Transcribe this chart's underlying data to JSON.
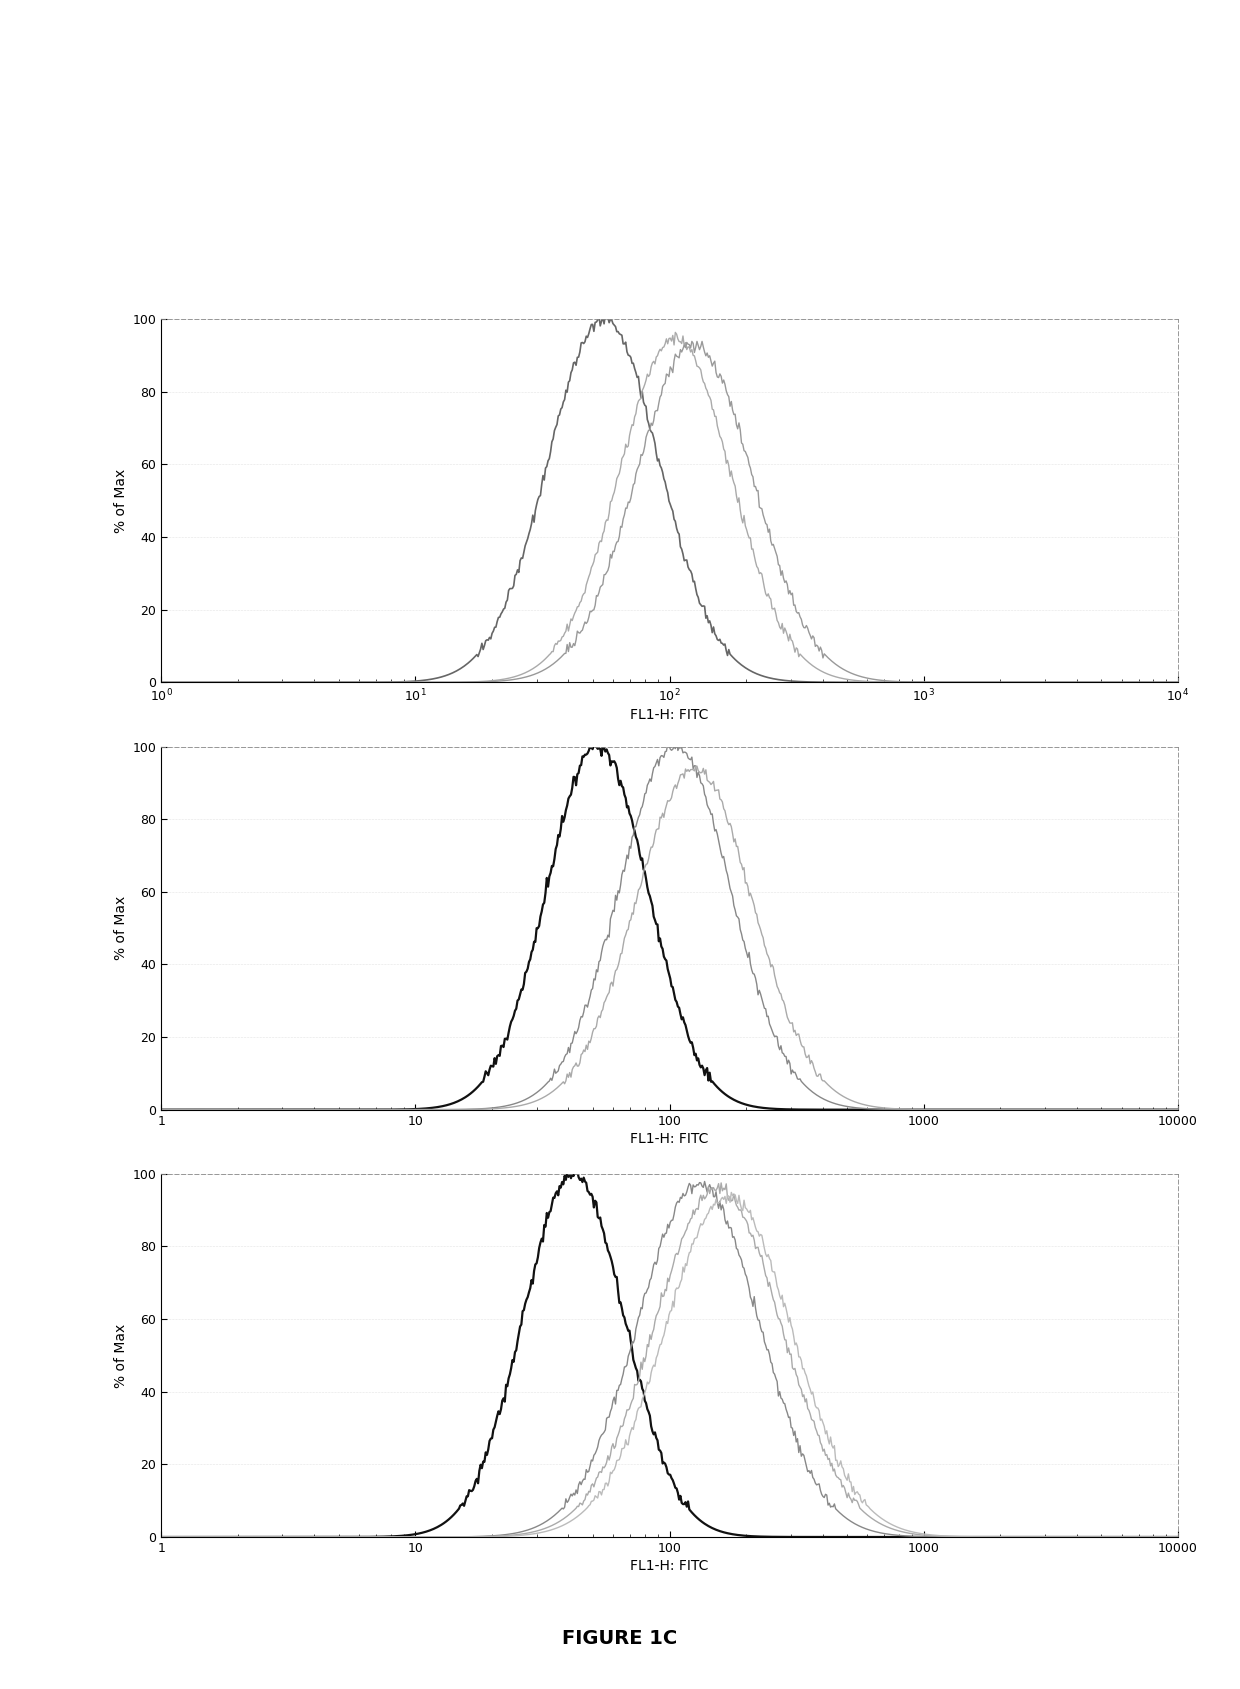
{
  "figure_title": "FIGURE 1C",
  "ylabel": "% of Max",
  "xlabel": "FL1-H: FITC",
  "ylim": [
    0,
    100
  ],
  "yticks": [
    0,
    20,
    40,
    60,
    80,
    100
  ],
  "background_color": "#ffffff",
  "plots": [
    {
      "xlim": [
        1,
        10000
      ],
      "style": "superscript",
      "curves": [
        {
          "color": "#666666",
          "lw": 1.2,
          "peak_x": 55,
          "sigma": 0.22,
          "peak_y": 100,
          "seed": 42
        },
        {
          "color": "#aaaaaa",
          "lw": 1.0,
          "peak_x": 105,
          "sigma": 0.22,
          "peak_y": 95,
          "seed": 55
        },
        {
          "color": "#999999",
          "lw": 1.0,
          "peak_x": 125,
          "sigma": 0.23,
          "peak_y": 93,
          "seed": 67
        }
      ]
    },
    {
      "xlim": [
        1,
        10000
      ],
      "style": "plain",
      "curves": [
        {
          "color": "#111111",
          "lw": 1.6,
          "peak_x": 52,
          "sigma": 0.2,
          "peak_y": 100,
          "seed": 11
        },
        {
          "color": "#888888",
          "lw": 1.0,
          "peak_x": 105,
          "sigma": 0.22,
          "peak_y": 100,
          "seed": 22
        },
        {
          "color": "#aaaaaa",
          "lw": 1.0,
          "peak_x": 125,
          "sigma": 0.23,
          "peak_y": 94,
          "seed": 33
        }
      ]
    },
    {
      "xlim": [
        1,
        10000
      ],
      "style": "plain",
      "curves": [
        {
          "color": "#111111",
          "lw": 1.6,
          "peak_x": 42,
          "sigma": 0.2,
          "peak_y": 100,
          "seed": 99
        },
        {
          "color": "#888888",
          "lw": 1.0,
          "peak_x": 130,
          "sigma": 0.24,
          "peak_y": 97,
          "seed": 77
        },
        {
          "color": "#aaaaaa",
          "lw": 1.0,
          "peak_x": 155,
          "sigma": 0.25,
          "peak_y": 96,
          "seed": 66
        },
        {
          "color": "#bbbbbb",
          "lw": 1.0,
          "peak_x": 170,
          "sigma": 0.25,
          "peak_y": 94,
          "seed": 55
        }
      ]
    }
  ]
}
